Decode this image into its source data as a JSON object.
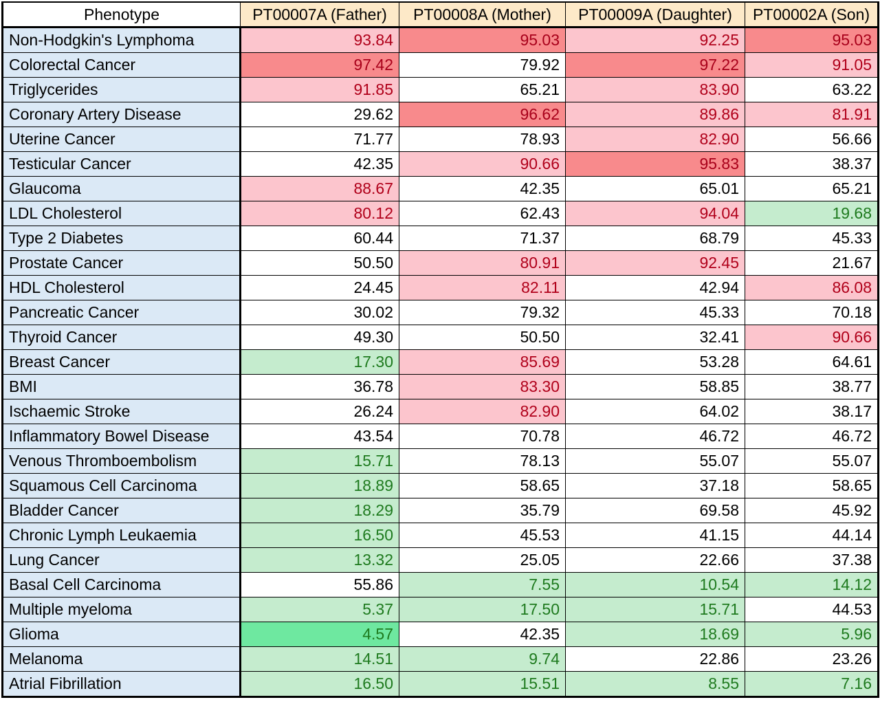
{
  "table": {
    "headers": [
      "Phenotype",
      "PT00007A (Father)",
      "PT00008A (Mother)",
      "PT00009A (Daughter)",
      "PT00002A (Son)"
    ],
    "colors": {
      "phenotype_bg": "#dbe9f6",
      "header_bg": "#fde9c8",
      "high_bg": "#fcc5cd",
      "very_high_bg": "#f88a8c",
      "low_bg": "#c5ecce",
      "very_low_bg": "#6ee8a0",
      "high_text": "#b0001a",
      "low_text": "#1e7a1e"
    },
    "rows": [
      {
        "phenotype": "Non-Hodgkin's Lymphoma",
        "values": [
          "93.84",
          "95.03",
          "92.25",
          "95.03"
        ],
        "levels": [
          "hi",
          "vhi",
          "hi",
          "vhi"
        ]
      },
      {
        "phenotype": "Colorectal Cancer",
        "values": [
          "97.42",
          "79.92",
          "97.22",
          "91.05"
        ],
        "levels": [
          "vhi",
          "",
          "vhi",
          "hi"
        ]
      },
      {
        "phenotype": "Triglycerides",
        "values": [
          "91.85",
          "65.21",
          "83.90",
          "63.22"
        ],
        "levels": [
          "hi",
          "",
          "hi",
          ""
        ]
      },
      {
        "phenotype": "Coronary Artery Disease",
        "values": [
          "29.62",
          "96.62",
          "89.86",
          "81.91"
        ],
        "levels": [
          "",
          "vhi",
          "hi",
          "hi"
        ]
      },
      {
        "phenotype": "Uterine Cancer",
        "values": [
          "71.77",
          "78.93",
          "82.90",
          "56.66"
        ],
        "levels": [
          "",
          "",
          "hi",
          ""
        ]
      },
      {
        "phenotype": "Testicular Cancer",
        "values": [
          "42.35",
          "90.66",
          "95.83",
          "38.37"
        ],
        "levels": [
          "",
          "hi",
          "vhi",
          ""
        ]
      },
      {
        "phenotype": "Glaucoma",
        "values": [
          "88.67",
          "42.35",
          "65.01",
          "65.21"
        ],
        "levels": [
          "hi",
          "",
          "",
          ""
        ]
      },
      {
        "phenotype": "LDL Cholesterol",
        "values": [
          "80.12",
          "62.43",
          "94.04",
          "19.68"
        ],
        "levels": [
          "hi",
          "",
          "hi",
          "lo"
        ]
      },
      {
        "phenotype": "Type 2 Diabetes",
        "values": [
          "60.44",
          "71.37",
          "68.79",
          "45.33"
        ],
        "levels": [
          "",
          "",
          "",
          ""
        ]
      },
      {
        "phenotype": "Prostate Cancer",
        "values": [
          "50.50",
          "80.91",
          "92.45",
          "21.67"
        ],
        "levels": [
          "",
          "hi",
          "hi",
          ""
        ]
      },
      {
        "phenotype": "HDL Cholesterol",
        "values": [
          "24.45",
          "82.11",
          "42.94",
          "86.08"
        ],
        "levels": [
          "",
          "hi",
          "",
          "hi"
        ]
      },
      {
        "phenotype": "Pancreatic Cancer",
        "values": [
          "30.02",
          "79.32",
          "45.33",
          "70.18"
        ],
        "levels": [
          "",
          "",
          "",
          ""
        ]
      },
      {
        "phenotype": "Thyroid Cancer",
        "values": [
          "49.30",
          "50.50",
          "32.41",
          "90.66"
        ],
        "levels": [
          "",
          "",
          "",
          "hi"
        ]
      },
      {
        "phenotype": "Breast Cancer",
        "values": [
          "17.30",
          "85.69",
          "53.28",
          "64.61"
        ],
        "levels": [
          "lo",
          "hi",
          "",
          ""
        ]
      },
      {
        "phenotype": "BMI",
        "values": [
          "36.78",
          "83.30",
          "58.85",
          "38.77"
        ],
        "levels": [
          "",
          "hi",
          "",
          ""
        ]
      },
      {
        "phenotype": "Ischaemic Stroke",
        "values": [
          "26.24",
          "82.90",
          "64.02",
          "38.17"
        ],
        "levels": [
          "",
          "hi",
          "",
          ""
        ]
      },
      {
        "phenotype": "Inflammatory Bowel Disease",
        "values": [
          "43.54",
          "70.78",
          "46.72",
          "46.72"
        ],
        "levels": [
          "",
          "",
          "",
          ""
        ]
      },
      {
        "phenotype": "Venous Thromboembolism",
        "values": [
          "15.71",
          "78.13",
          "55.07",
          "55.07"
        ],
        "levels": [
          "lo",
          "",
          "",
          ""
        ]
      },
      {
        "phenotype": "Squamous Cell Carcinoma",
        "values": [
          "18.89",
          "58.65",
          "37.18",
          "58.65"
        ],
        "levels": [
          "lo",
          "",
          "",
          ""
        ]
      },
      {
        "phenotype": "Bladder Cancer",
        "values": [
          "18.29",
          "35.79",
          "69.58",
          "45.92"
        ],
        "levels": [
          "lo",
          "",
          "",
          ""
        ]
      },
      {
        "phenotype": "Chronic Lymph Leukaemia",
        "values": [
          "16.50",
          "45.53",
          "41.15",
          "44.14"
        ],
        "levels": [
          "lo",
          "",
          "",
          ""
        ]
      },
      {
        "phenotype": "Lung Cancer",
        "values": [
          "13.32",
          "25.05",
          "22.66",
          "37.38"
        ],
        "levels": [
          "lo",
          "",
          "",
          ""
        ]
      },
      {
        "phenotype": "Basal Cell Carcinoma",
        "values": [
          "55.86",
          "7.55",
          "10.54",
          "14.12"
        ],
        "levels": [
          "",
          "lo",
          "lo",
          "lo"
        ]
      },
      {
        "phenotype": "Multiple myeloma",
        "values": [
          "5.37",
          "17.50",
          "15.71",
          "44.53"
        ],
        "levels": [
          "lo",
          "lo",
          "lo",
          ""
        ]
      },
      {
        "phenotype": "Glioma",
        "values": [
          "4.57",
          "42.35",
          "18.69",
          "5.96"
        ],
        "levels": [
          "vlo",
          "",
          "lo",
          "lo"
        ]
      },
      {
        "phenotype": "Melanoma",
        "values": [
          "14.51",
          "9.74",
          "22.86",
          "23.26"
        ],
        "levels": [
          "lo",
          "lo",
          "",
          ""
        ]
      },
      {
        "phenotype": "Atrial Fibrillation",
        "values": [
          "16.50",
          "15.51",
          "8.55",
          "7.16"
        ],
        "levels": [
          "lo",
          "lo",
          "lo",
          "lo"
        ]
      }
    ]
  }
}
